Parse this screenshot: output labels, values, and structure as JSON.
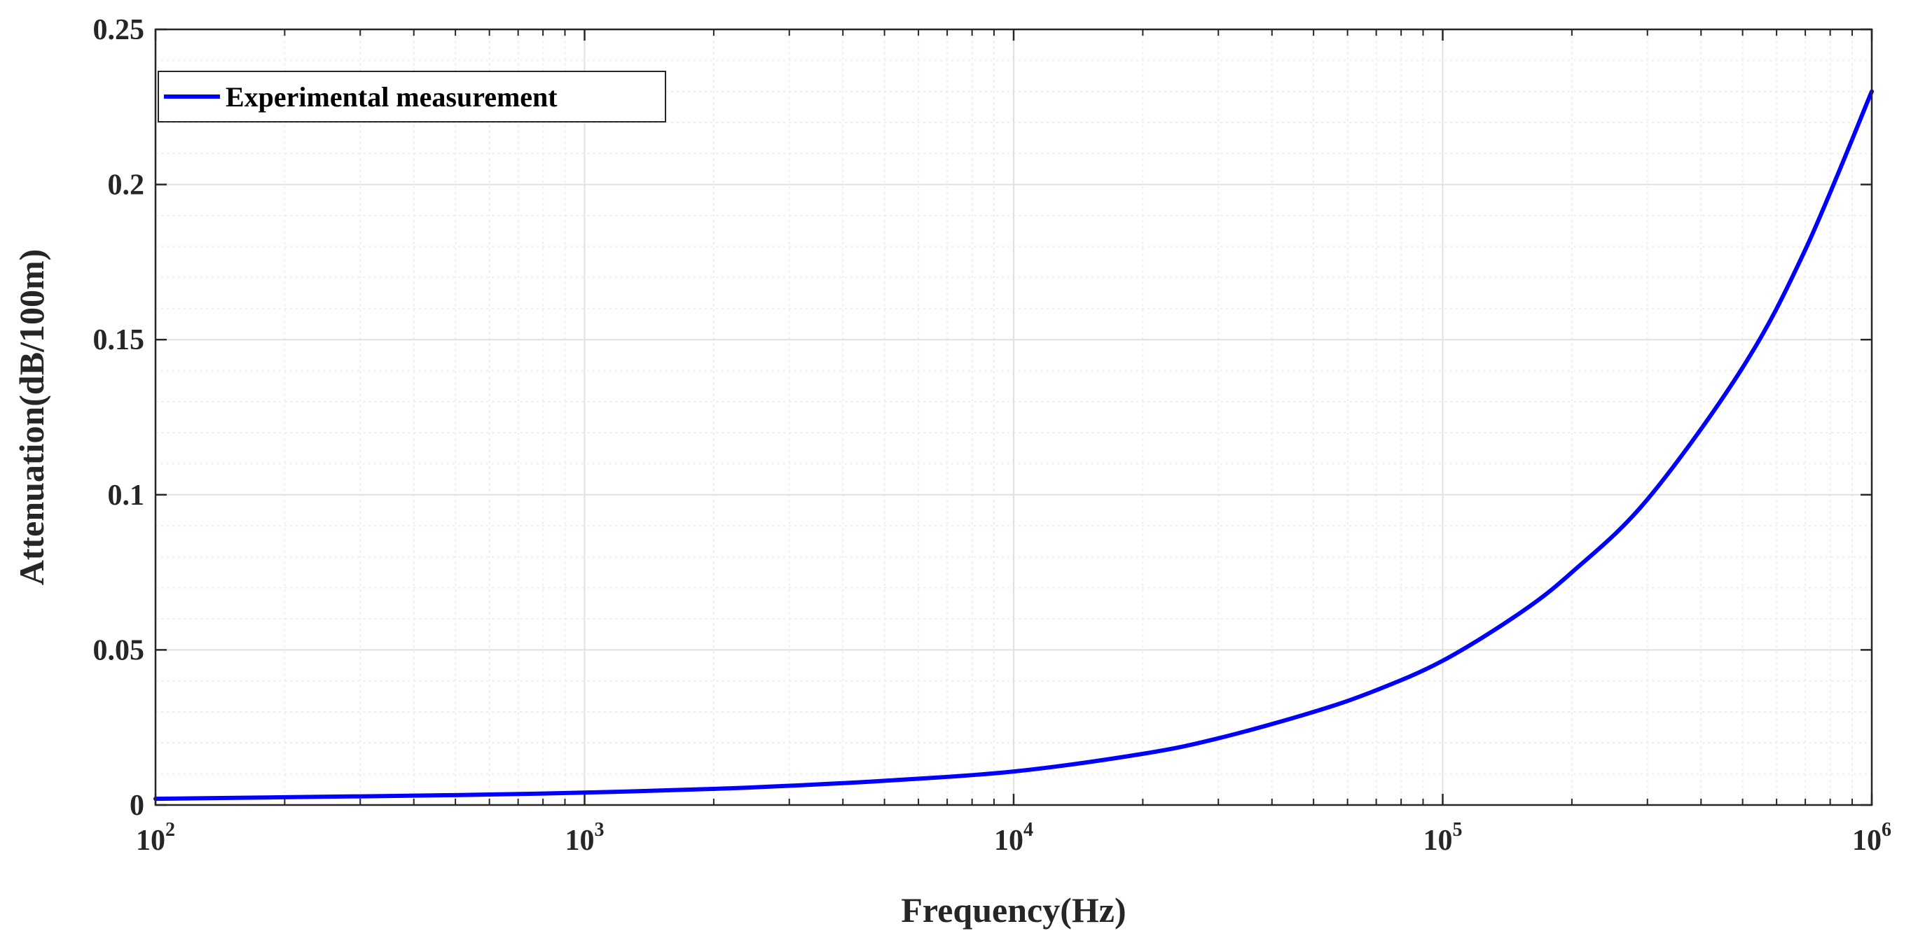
{
  "chart_data": {
    "type": "line",
    "title": "",
    "xlabel": "Frequency(Hz)",
    "ylabel": "Attenuation(dB/100m)",
    "xscale": "log",
    "xlim": [
      100,
      1000000
    ],
    "ylim": [
      0,
      0.25
    ],
    "grid": true,
    "minor_grid": true,
    "x_ticks": [
      {
        "value": 100,
        "base": "10",
        "exp": "2"
      },
      {
        "value": 1000,
        "base": "10",
        "exp": "3"
      },
      {
        "value": 10000,
        "base": "10",
        "exp": "4"
      },
      {
        "value": 100000,
        "base": "10",
        "exp": "5"
      },
      {
        "value": 1000000,
        "base": "10",
        "exp": "6"
      }
    ],
    "y_ticks": [
      {
        "value": 0,
        "label": "0"
      },
      {
        "value": 0.05,
        "label": "0.05"
      },
      {
        "value": 0.1,
        "label": "0.1"
      },
      {
        "value": 0.15,
        "label": "0.15"
      },
      {
        "value": 0.2,
        "label": "0.2"
      },
      {
        "value": 0.25,
        "label": "0.25"
      }
    ],
    "legend_position": "top-left",
    "series": [
      {
        "name": "Experimental measurement",
        "color": "#0000ff",
        "x": [
          100,
          200,
          500,
          1000,
          2000,
          3000,
          5000,
          10000,
          20000,
          30000,
          50000,
          70000,
          100000,
          150000,
          200000,
          300000,
          500000,
          700000,
          1000000
        ],
        "values": [
          0.002,
          0.0025,
          0.0032,
          0.004,
          0.0052,
          0.0062,
          0.0078,
          0.0108,
          0.0165,
          0.0215,
          0.03,
          0.037,
          0.0465,
          0.0615,
          0.075,
          0.0985,
          0.141,
          0.179,
          0.23
        ]
      }
    ]
  },
  "style": {
    "axis_color": "#262626",
    "grid_color": "#e0e0e0",
    "minor_grid_color": "#ededed",
    "background": "#ffffff"
  }
}
